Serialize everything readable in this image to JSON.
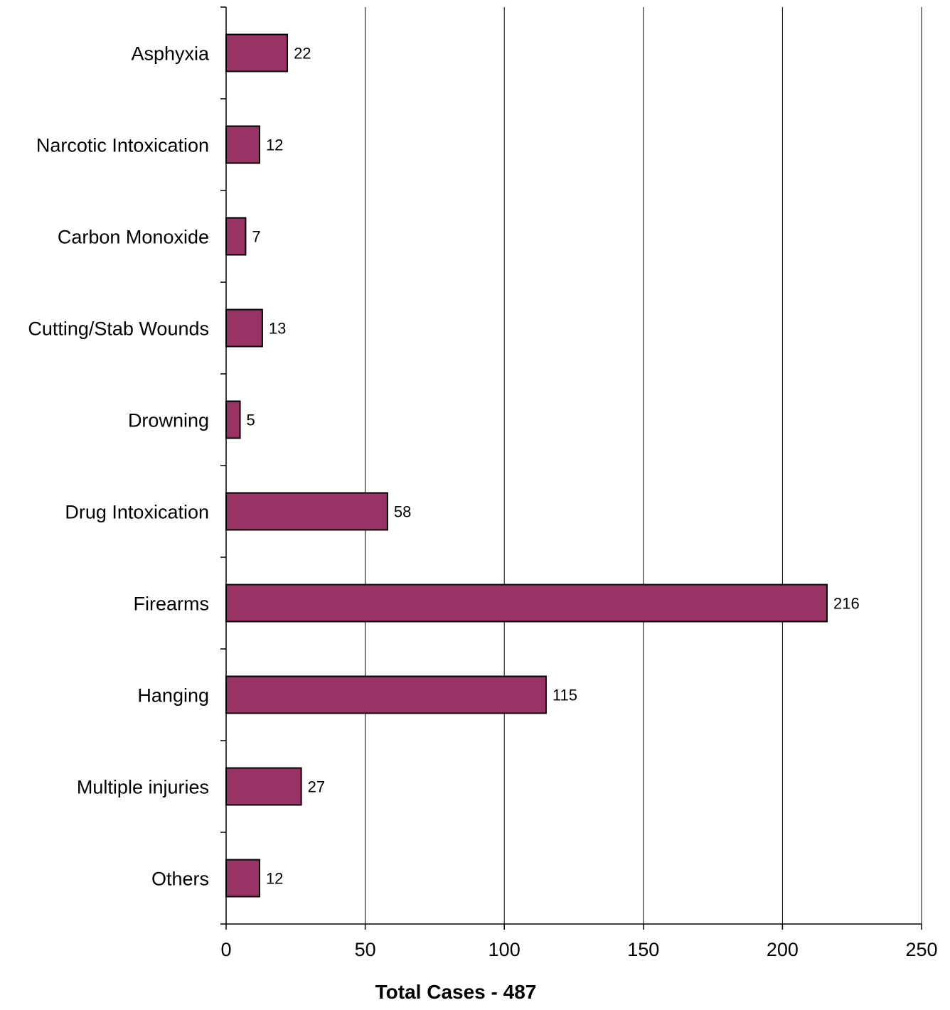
{
  "chart_data": {
    "type": "bar",
    "orientation": "horizontal",
    "categories": [
      "Asphyxia",
      "Narcotic Intoxication",
      "Carbon Monoxide",
      "Cutting/Stab Wounds",
      "Drowning",
      "Drug Intoxication",
      "Firearms",
      "Hanging",
      "Multiple injuries",
      "Others"
    ],
    "values": [
      22,
      12,
      7,
      13,
      5,
      58,
      216,
      115,
      27,
      12
    ],
    "data_labels": [
      "22",
      "12",
      "7",
      "13",
      "5",
      "58",
      "216",
      "115",
      "27",
      "12"
    ],
    "x_ticks": [
      "0",
      "50",
      "100",
      "150",
      "200",
      "250"
    ],
    "xlim": [
      0,
      250
    ],
    "xlabel": "Total Cases - 487",
    "ylabel": "",
    "title": "",
    "grid": "vertical",
    "legend": "none",
    "colors": {
      "bar": "#993366",
      "bar_stroke": "#000000",
      "grid": "#000000"
    }
  }
}
